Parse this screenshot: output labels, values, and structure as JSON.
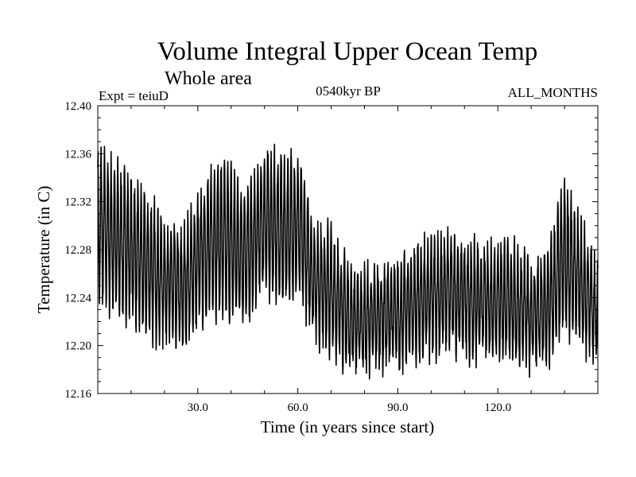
{
  "chart_data": {
    "type": "line",
    "title": "Volume Integral Upper Ocean Temp",
    "subtitle": "Whole area",
    "annotations": {
      "left": "Expt = teiuD",
      "center": "0540kyr BP",
      "right": "ALL_MONTHS"
    },
    "xlabel": "Time (in years since start)",
    "ylabel": "Temperature (in C)",
    "xlim": [
      0,
      150
    ],
    "ylim": [
      12.16,
      12.4
    ],
    "x_ticks": [
      30,
      60,
      90,
      120
    ],
    "x_tick_labels": [
      "30.0",
      "60.0",
      "90.0",
      "120.0"
    ],
    "y_ticks": [
      12.16,
      12.2,
      12.24,
      12.28,
      12.32,
      12.36,
      12.4
    ],
    "y_tick_labels": [
      "12.16",
      "12.20",
      "12.24",
      "12.28",
      "12.32",
      "12.36",
      "12.40"
    ],
    "grid": false,
    "series": [
      {
        "name": "Volume integral upper ocean temperature",
        "samples_per_year": 12,
        "annual_mean_x": [
          0,
          5,
          10,
          15,
          20,
          25,
          30,
          35,
          40,
          45,
          50,
          55,
          60,
          65,
          70,
          75,
          80,
          85,
          90,
          95,
          100,
          105,
          110,
          115,
          120,
          125,
          130,
          135,
          140,
          145,
          150
        ],
        "annual_mean": [
          12.3,
          12.29,
          12.28,
          12.265,
          12.255,
          12.245,
          12.27,
          12.29,
          12.285,
          12.275,
          12.305,
          12.295,
          12.3,
          12.255,
          12.245,
          12.225,
          12.22,
          12.225,
          12.225,
          12.235,
          12.24,
          12.245,
          12.24,
          12.235,
          12.24,
          12.235,
          12.225,
          12.23,
          12.275,
          12.25,
          12.225
        ],
        "seasonal_amplitude": [
          0.06,
          0.06,
          0.055,
          0.055,
          0.05,
          0.045,
          0.05,
          0.06,
          0.06,
          0.055,
          0.055,
          0.06,
          0.055,
          0.045,
          0.05,
          0.04,
          0.04,
          0.04,
          0.04,
          0.045,
          0.045,
          0.045,
          0.045,
          0.045,
          0.045,
          0.045,
          0.04,
          0.045,
          0.06,
          0.05,
          0.04
        ]
      }
    ]
  }
}
